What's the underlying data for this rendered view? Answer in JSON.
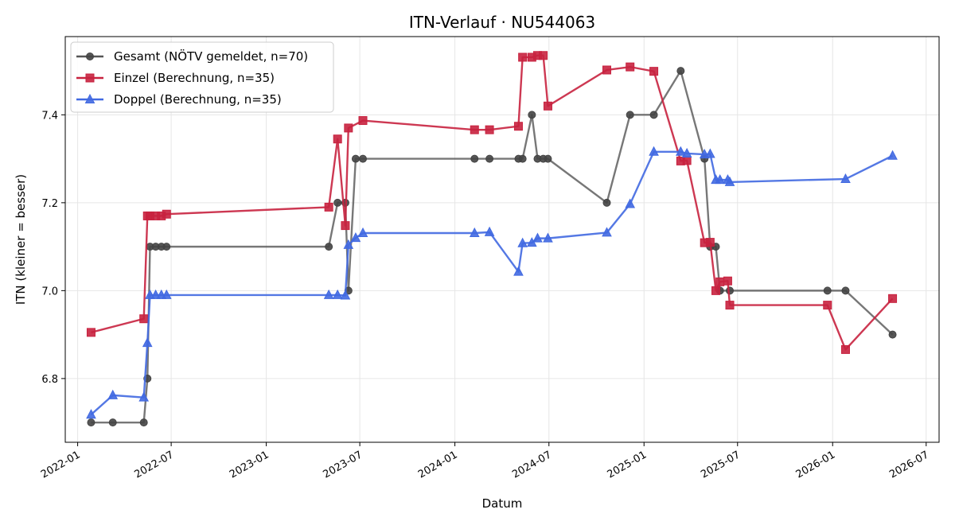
{
  "chart_data": {
    "type": "line",
    "title": "ITN-Verlauf · NU544063",
    "xlabel": "Datum",
    "ylabel": "ITN  (kleiner = besser)",
    "x_axis": "date",
    "xlim": [
      "2021-12-08",
      "2026-07-26"
    ],
    "ylim": [
      6.655,
      7.578
    ],
    "x_ticks": [
      "2022-01",
      "2022-07",
      "2023-01",
      "2023-07",
      "2024-01",
      "2024-07",
      "2025-01",
      "2025-07",
      "2026-01",
      "2026-07"
    ],
    "y_ticks": [
      6.8,
      7.0,
      7.2,
      7.4
    ],
    "grid": true,
    "legend_position": "upper-left",
    "series": [
      {
        "name": "Gesamt (NÖTV gemeldet, n=70)",
        "color": "#555555",
        "marker": "circle",
        "points": [
          [
            "2022-01-27",
            6.7
          ],
          [
            "2022-03-10",
            6.7
          ],
          [
            "2022-05-09",
            6.7
          ],
          [
            "2022-05-16",
            6.8
          ],
          [
            "2022-05-21",
            7.1
          ],
          [
            "2022-06-01",
            7.1
          ],
          [
            "2022-06-12",
            7.1
          ],
          [
            "2022-06-22",
            7.1
          ],
          [
            "2023-05-02",
            7.1
          ],
          [
            "2023-05-19",
            7.2
          ],
          [
            "2023-06-03",
            7.2
          ],
          [
            "2023-06-09",
            7.0
          ],
          [
            "2023-06-23",
            7.3
          ],
          [
            "2023-07-07",
            7.3
          ],
          [
            "2024-02-08",
            7.3
          ],
          [
            "2024-03-08",
            7.3
          ],
          [
            "2024-05-03",
            7.3
          ],
          [
            "2024-05-11",
            7.3
          ],
          [
            "2024-05-29",
            7.4
          ],
          [
            "2024-06-09",
            7.3
          ],
          [
            "2024-06-20",
            7.3
          ],
          [
            "2024-06-29",
            7.3
          ],
          [
            "2024-10-21",
            7.2
          ],
          [
            "2024-12-05",
            7.4
          ],
          [
            "2025-01-20",
            7.4
          ],
          [
            "2025-03-13",
            7.5
          ],
          [
            "2025-04-28",
            7.3
          ],
          [
            "2025-05-09",
            7.1
          ],
          [
            "2025-05-20",
            7.1
          ],
          [
            "2025-05-28",
            7.0
          ],
          [
            "2025-06-16",
            7.0
          ],
          [
            "2025-12-22",
            7.0
          ],
          [
            "2026-01-26",
            7.0
          ],
          [
            "2026-04-27",
            6.9
          ]
        ]
      },
      {
        "name": "Einzel (Berechnung, n=35)",
        "color": "#c8223f",
        "marker": "square",
        "points": [
          [
            "2022-01-27",
            6.905
          ],
          [
            "2022-05-09",
            6.936
          ],
          [
            "2022-05-16",
            7.17
          ],
          [
            "2022-05-21",
            7.17
          ],
          [
            "2022-06-01",
            7.17
          ],
          [
            "2022-06-12",
            7.17
          ],
          [
            "2022-06-22",
            7.174
          ],
          [
            "2023-05-02",
            7.19
          ],
          [
            "2023-05-19",
            7.345
          ],
          [
            "2023-06-03",
            7.148
          ],
          [
            "2023-06-09",
            7.37
          ],
          [
            "2023-07-07",
            7.387
          ],
          [
            "2024-02-08",
            7.366
          ],
          [
            "2024-03-08",
            7.366
          ],
          [
            "2024-05-03",
            7.374
          ],
          [
            "2024-05-11",
            7.531
          ],
          [
            "2024-05-29",
            7.531
          ],
          [
            "2024-06-09",
            7.535
          ],
          [
            "2024-06-20",
            7.535
          ],
          [
            "2024-06-29",
            7.42
          ],
          [
            "2024-10-21",
            7.502
          ],
          [
            "2024-12-05",
            7.509
          ],
          [
            "2025-01-20",
            7.499
          ],
          [
            "2025-03-13",
            7.295
          ],
          [
            "2025-03-25",
            7.296
          ],
          [
            "2025-04-28",
            7.109
          ],
          [
            "2025-05-09",
            7.11
          ],
          [
            "2025-05-20",
            7.0
          ],
          [
            "2025-05-28",
            7.02
          ],
          [
            "2025-06-12",
            7.022
          ],
          [
            "2025-06-16",
            6.967
          ],
          [
            "2025-12-22",
            6.967
          ],
          [
            "2026-01-26",
            6.866
          ],
          [
            "2026-04-27",
            6.982
          ]
        ]
      },
      {
        "name": "Doppel (Berechnung, n=35)",
        "color": "#4169e1",
        "marker": "triangle",
        "points": [
          [
            "2022-01-27",
            6.718
          ],
          [
            "2022-03-10",
            6.762
          ],
          [
            "2022-05-09",
            6.757
          ],
          [
            "2022-05-16",
            6.881
          ],
          [
            "2022-05-21",
            6.99
          ],
          [
            "2022-06-01",
            6.99
          ],
          [
            "2022-06-12",
            6.99
          ],
          [
            "2022-06-22",
            6.99
          ],
          [
            "2023-05-02",
            6.99
          ],
          [
            "2023-05-19",
            6.99
          ],
          [
            "2023-06-03",
            6.989
          ],
          [
            "2023-06-09",
            7.104
          ],
          [
            "2023-06-23",
            7.12
          ],
          [
            "2023-07-07",
            7.131
          ],
          [
            "2024-02-08",
            7.131
          ],
          [
            "2024-03-08",
            7.133
          ],
          [
            "2024-05-03",
            7.043
          ],
          [
            "2024-05-11",
            7.108
          ],
          [
            "2024-05-29",
            7.109
          ],
          [
            "2024-06-09",
            7.119
          ],
          [
            "2024-06-29",
            7.119
          ],
          [
            "2024-10-21",
            7.132
          ],
          [
            "2024-12-05",
            7.197
          ],
          [
            "2025-01-20",
            7.316
          ],
          [
            "2025-03-13",
            7.316
          ],
          [
            "2025-03-25",
            7.312
          ],
          [
            "2025-04-28",
            7.31
          ],
          [
            "2025-05-09",
            7.311
          ],
          [
            "2025-05-20",
            7.252
          ],
          [
            "2025-05-28",
            7.252
          ],
          [
            "2025-06-12",
            7.252
          ],
          [
            "2025-06-16",
            7.247
          ],
          [
            "2026-01-26",
            7.254
          ],
          [
            "2026-04-27",
            7.307
          ]
        ]
      }
    ]
  }
}
